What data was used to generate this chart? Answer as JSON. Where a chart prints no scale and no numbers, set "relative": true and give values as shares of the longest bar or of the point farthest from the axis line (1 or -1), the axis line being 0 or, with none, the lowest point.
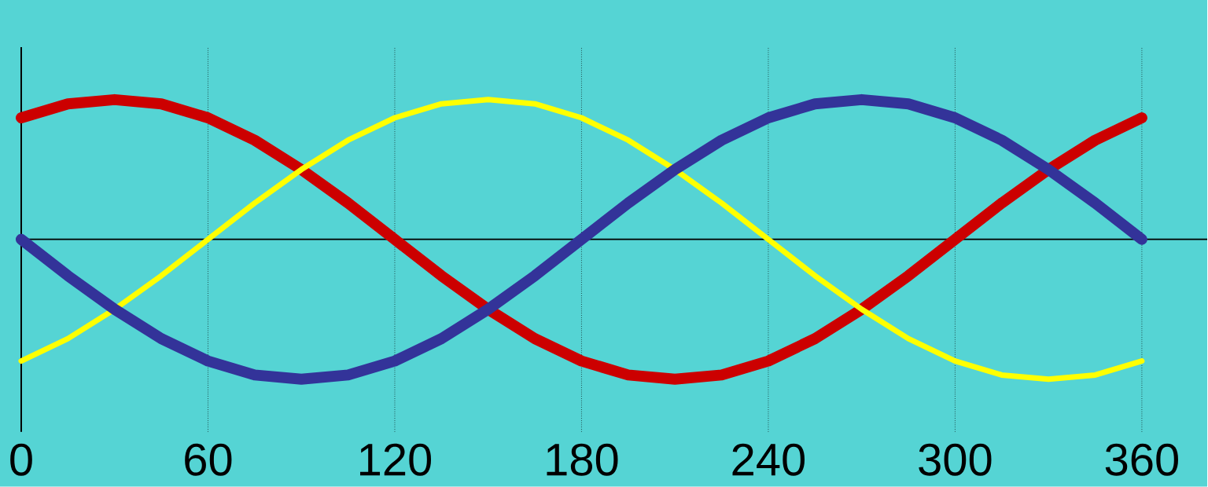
{
  "chart_data": {
    "type": "line",
    "relative": true,
    "x": [
      0,
      15,
      30,
      45,
      60,
      75,
      90,
      105,
      120,
      135,
      150,
      165,
      180,
      195,
      210,
      225,
      240,
      255,
      270,
      285,
      300,
      315,
      330,
      345,
      360
    ],
    "series": [
      {
        "color": "#cc0000",
        "values": [
          0.87,
          0.97,
          1,
          0.97,
          0.87,
          0.71,
          0.5,
          0.26,
          0,
          -0.26,
          -0.5,
          -0.71,
          -0.87,
          -0.97,
          -1,
          -0.97,
          -0.87,
          -0.71,
          -0.5,
          -0.26,
          0,
          0.26,
          0.5,
          0.71,
          0.87
        ]
      },
      {
        "color": "#ffff00",
        "values": [
          -0.87,
          -0.71,
          -0.5,
          -0.26,
          0,
          0.26,
          0.5,
          0.71,
          0.87,
          0.97,
          1,
          0.97,
          0.87,
          0.71,
          0.5,
          0.26,
          0,
          -0.26,
          -0.5,
          -0.71,
          -0.87,
          -0.97,
          -1,
          -0.97,
          -0.87
        ]
      },
      {
        "color": "#333399",
        "values": [
          0,
          -0.26,
          -0.5,
          -0.71,
          -0.87,
          -0.97,
          -1,
          -0.97,
          -0.87,
          -0.71,
          -0.5,
          -0.26,
          0,
          0.26,
          0.5,
          0.71,
          0.87,
          0.97,
          1,
          0.97,
          0.87,
          0.71,
          0.5,
          0.26,
          0
        ]
      }
    ],
    "xlim": [
      0,
      381
    ],
    "xticks": [
      0,
      60,
      120,
      180,
      240,
      300,
      360
    ],
    "grid": "x",
    "tick_labels": "x",
    "marker": "none",
    "line_style": "solid"
  }
}
